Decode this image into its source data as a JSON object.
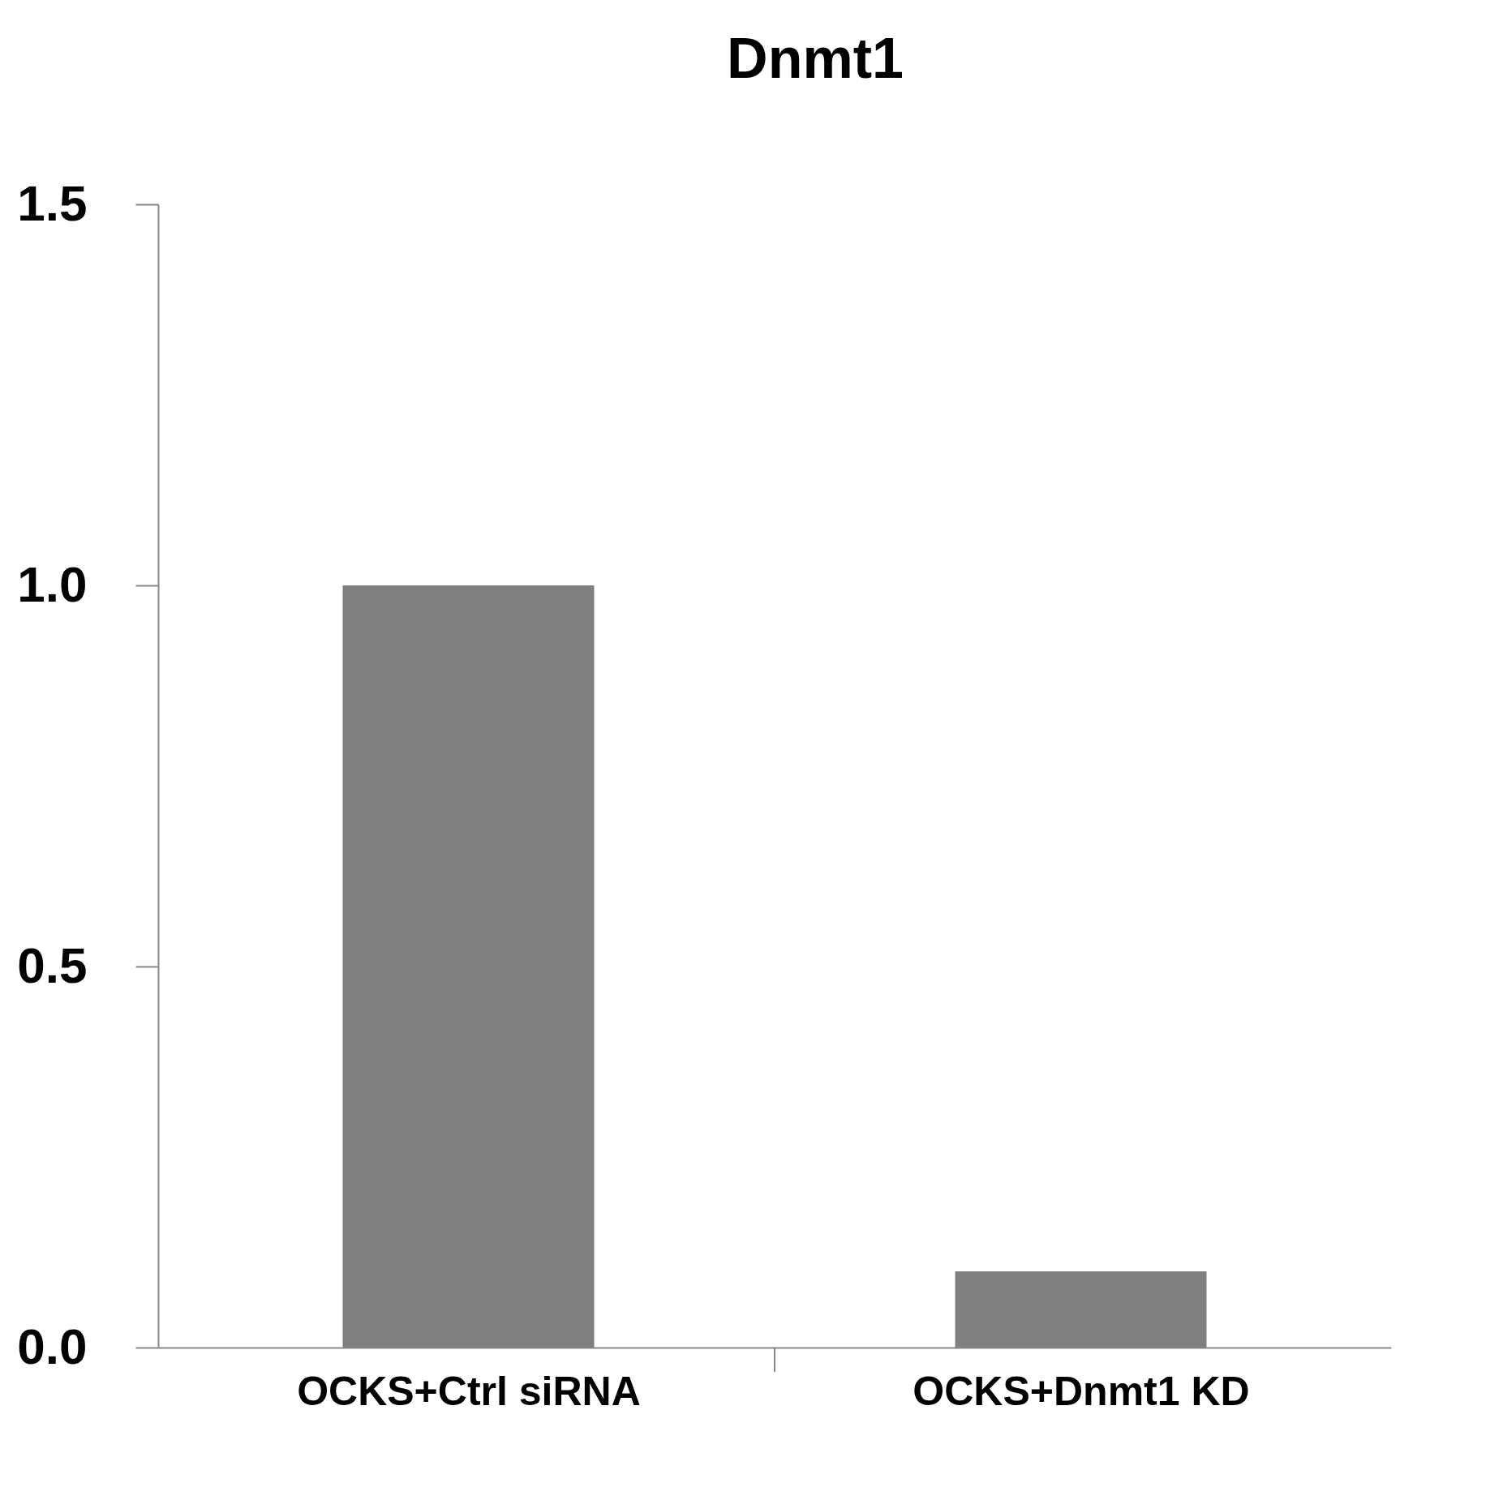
{
  "chart_data": {
    "type": "bar",
    "title": "Dnmt1",
    "categories": [
      "OCKS+Ctrl siRNA",
      "OCKS+Dnmt1 KD"
    ],
    "values": [
      1.0,
      0.1
    ],
    "color": "#7f7f7f",
    "ylim": [
      0,
      1.5
    ],
    "yticks": [
      {
        "value": 0,
        "label": "0.0"
      },
      {
        "value": 0.5,
        "label": "0.5"
      },
      {
        "value": 1.0,
        "label": "1.0"
      },
      {
        "value": 1.5,
        "label": "1.5"
      }
    ],
    "grid": false
  }
}
